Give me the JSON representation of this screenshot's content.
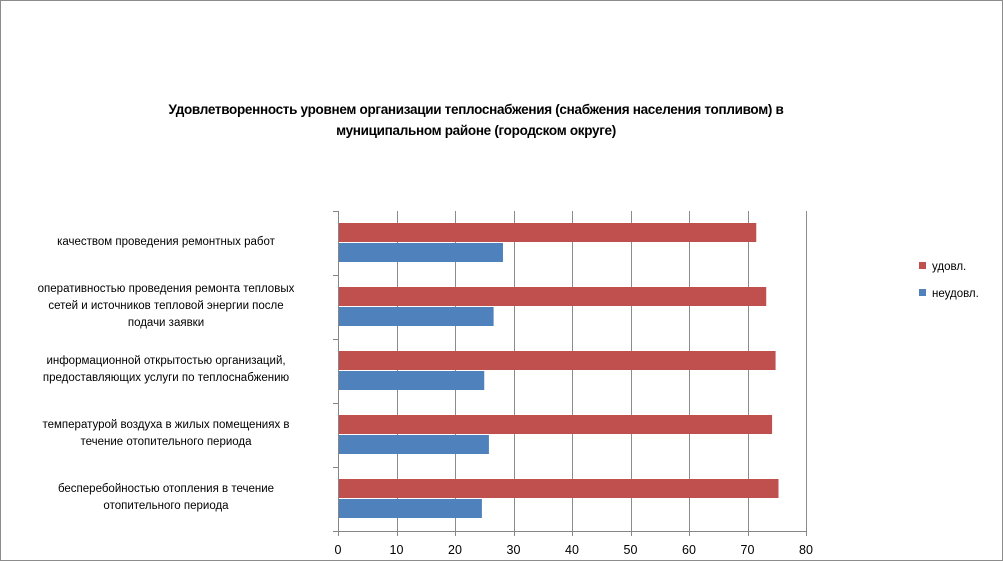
{
  "chart_data": {
    "type": "bar",
    "orientation": "horizontal",
    "title": "Удовлетворенность уровнем организации теплоснабжения (снабжения населения топливом) в муниципальном районе (городском округе)",
    "title_lines": [
      "Удовлетворенность уровнем организации теплоснабжения (снабжения населения топливом) в",
      "муниципальном районе (городском округе)"
    ],
    "categories": [
      "качеством проведения ремонтных работ",
      "оперативностью проведения ремонта тепловых сетей и источников тепловой энергии после подачи заявки",
      "информационной открытостью организаций, предоставляющих услуги по теплоснабжению",
      "температурой воздуха в жилых помещениях в течение отопительного периода",
      "бесперебойностью отопления в течение отопительного периода"
    ],
    "category_lines": [
      [
        "качеством проведения ремонтных работ"
      ],
      [
        "оперативностью проведения ремонта тепловых",
        "сетей и источников тепловой энергии после",
        "подачи заявки"
      ],
      [
        "информационной открытостью организаций,",
        "предоставляющих услуги по теплоснабжению"
      ],
      [
        "температурой воздуха в жилых помещениях в",
        "течение отопительного периода"
      ],
      [
        "бесперебойностью отопления в течение",
        "отопительного периода"
      ]
    ],
    "series": [
      {
        "name": "удовл.",
        "color": "#c0504d",
        "values": [
          71.5,
          73.2,
          74.8,
          74.2,
          75.3
        ]
      },
      {
        "name": "неудовл.",
        "color": "#4f81bd",
        "values": [
          28.2,
          26.6,
          25.0,
          25.8,
          24.6
        ]
      }
    ],
    "xlim": [
      0,
      80
    ],
    "xticks": [
      0,
      10,
      20,
      30,
      40,
      50,
      60,
      70,
      80
    ],
    "grid": true,
    "legend_position": "right",
    "xlabel": "",
    "ylabel": ""
  }
}
